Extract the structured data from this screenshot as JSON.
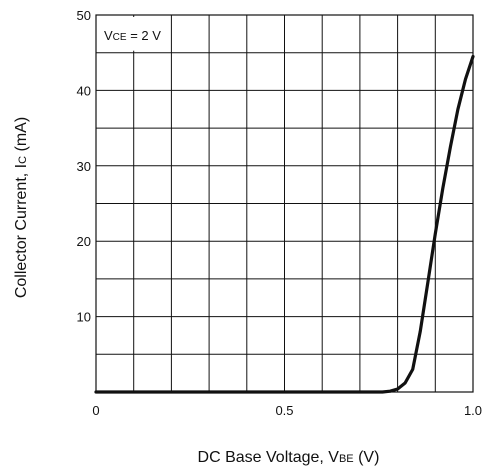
{
  "chart_data": {
    "type": "line",
    "title": "",
    "xlabel": {
      "prefix": "DC Base Voltage, V",
      "sub": "BE",
      "suffix": " (V)"
    },
    "ylabel": {
      "prefix": "Collector Current, I",
      "sub": "C",
      "suffix": " (mA)"
    },
    "annotation": {
      "prefix": "V",
      "sub": "CE",
      "suffix": " = 2 V"
    },
    "xlim": [
      0,
      1.0
    ],
    "ylim": [
      0,
      50
    ],
    "x_ticks": [
      0,
      0.5,
      1.0
    ],
    "x_tick_labels": [
      "0",
      "0.5",
      "1.0"
    ],
    "y_ticks": [
      10,
      20,
      30,
      40,
      50
    ],
    "y_tick_labels": [
      "10",
      "20",
      "30",
      "40",
      "50"
    ],
    "grid": true,
    "series": [
      {
        "name": "",
        "x": [
          0,
          0.5,
          0.76,
          0.78,
          0.8,
          0.82,
          0.84,
          0.86,
          0.88,
          0.9,
          0.92,
          0.94,
          0.96,
          0.98,
          1.0
        ],
        "y": [
          0,
          0,
          0,
          0.1,
          0.4,
          1.2,
          3.0,
          8.0,
          14.5,
          21.0,
          27.0,
          32.5,
          37.5,
          41.5,
          44.5
        ]
      }
    ]
  }
}
